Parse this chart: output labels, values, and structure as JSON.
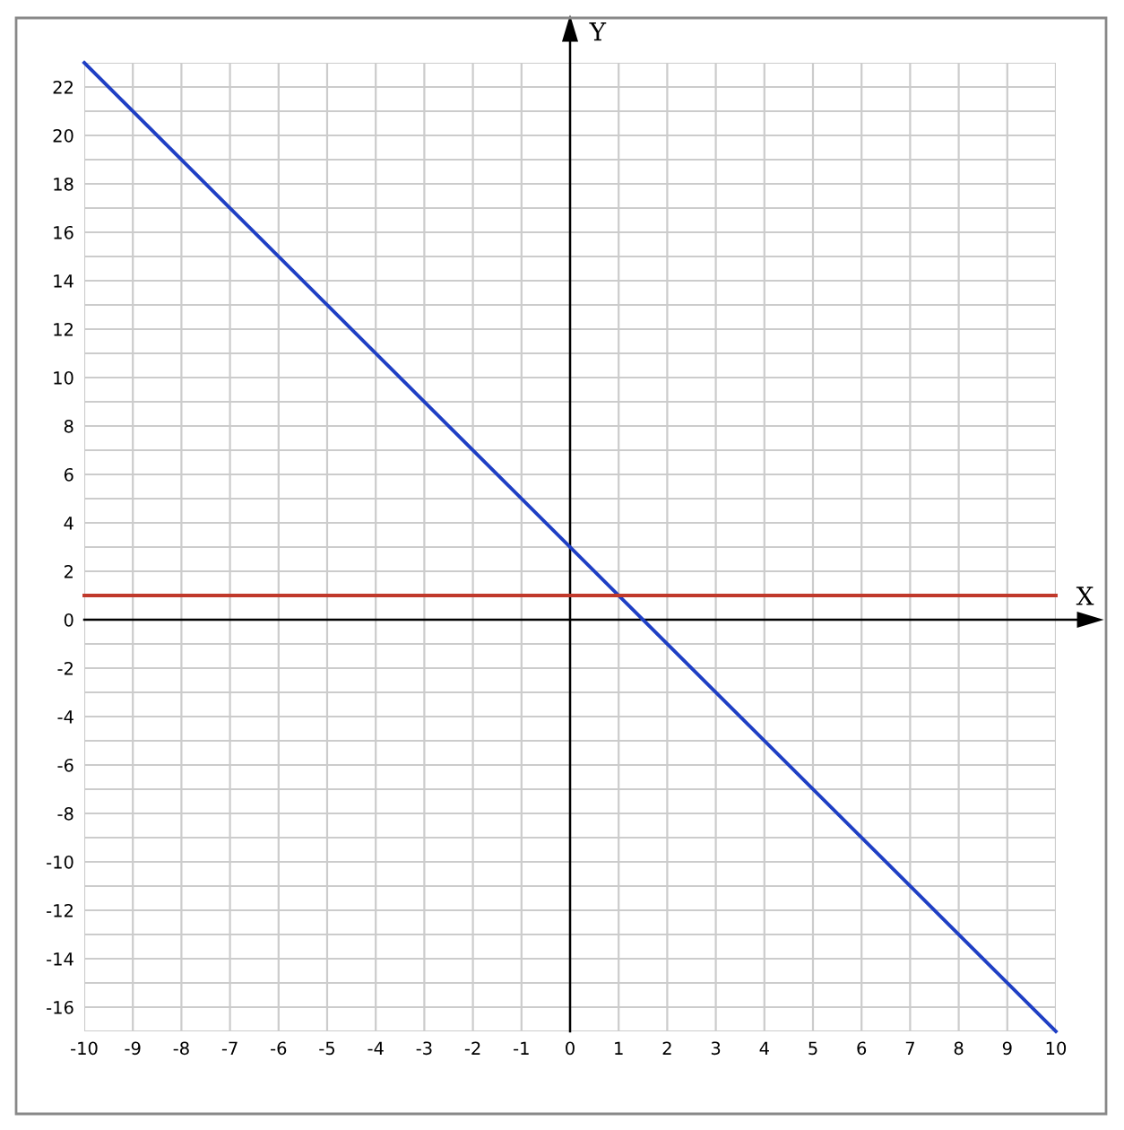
{
  "chart_data": {
    "type": "line",
    "xlabel": "X",
    "ylabel": "Y",
    "series": [
      {
        "color": "#1f3fc4",
        "values": [
          23,
          -17
        ]
      },
      {
        "color": "#c0392b",
        "values": [
          1,
          1
        ]
      }
    ],
    "x": [
      -10,
      10
    ],
    "xlim": [
      -10,
      10
    ],
    "ylim": [
      -17,
      23
    ],
    "xticks": [
      -10,
      -9,
      -8,
      -7,
      -6,
      -5,
      -4,
      -3,
      -2,
      -1,
      0,
      1,
      2,
      3,
      4,
      5,
      6,
      7,
      8,
      9,
      10
    ],
    "yticks": [
      {
        "value": -17,
        "label": null
      },
      -16,
      {
        "value": -15,
        "label": null
      },
      -14,
      {
        "value": -13,
        "label": null
      },
      -12,
      {
        "value": -11,
        "label": null
      },
      -10,
      {
        "value": -9,
        "label": null
      },
      -8,
      {
        "value": -7,
        "label": null
      },
      -6,
      {
        "value": -5,
        "label": null
      },
      -4,
      {
        "value": -3,
        "label": null
      },
      -2,
      {
        "value": -1,
        "label": null
      },
      0,
      {
        "value": 1,
        "label": null
      },
      2,
      {
        "value": 3,
        "label": null
      },
      4,
      {
        "value": 5,
        "label": null
      },
      6,
      {
        "value": 7,
        "label": null
      },
      8,
      {
        "value": 9,
        "label": null
      },
      10,
      {
        "value": 11,
        "label": null
      },
      12,
      {
        "value": 13,
        "label": null
      },
      14,
      {
        "value": 15,
        "label": null
      },
      16,
      {
        "value": 17,
        "label": null
      },
      18,
      {
        "value": 19,
        "label": null
      },
      20,
      {
        "value": 21,
        "label": null
      },
      22,
      {
        "value": 23,
        "label": null
      }
    ],
    "grid": true,
    "marker": "none",
    "line_style": "solid",
    "legend": false
  }
}
